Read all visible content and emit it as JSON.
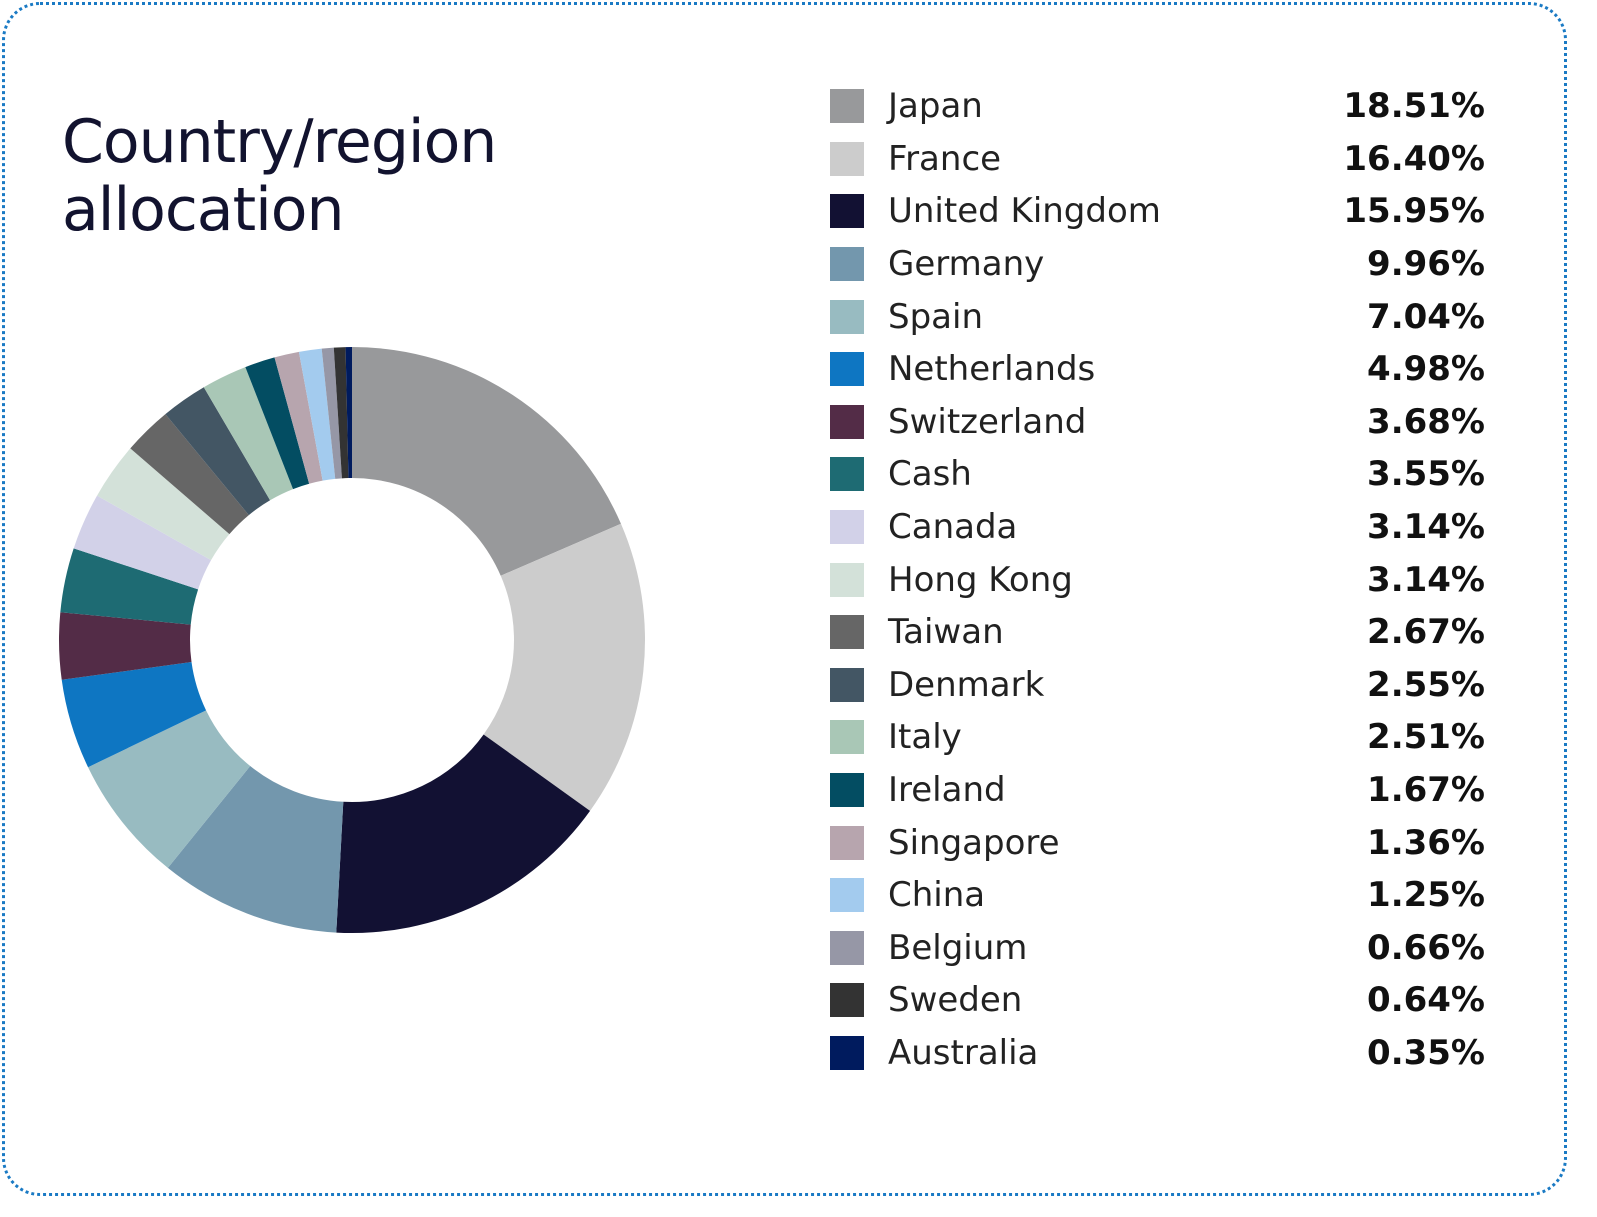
{
  "chart_data": {
    "type": "pie",
    "title": "Country/region allocation",
    "unit": "%",
    "donut": true,
    "legend": "right",
    "slices": [
      {
        "label": "Japan",
        "value": 18.51,
        "display": "18.51%",
        "color": "#98999b"
      },
      {
        "label": "France",
        "value": 16.4,
        "display": "16.40%",
        "color": "#cccccc"
      },
      {
        "label": "United Kingdom",
        "value": 15.95,
        "display": "15.95%",
        "color": "#121133"
      },
      {
        "label": "Germany",
        "value": 9.96,
        "display": "9.96%",
        "color": "#7397ad"
      },
      {
        "label": "Spain",
        "value": 7.04,
        "display": "7.04%",
        "color": "#98bbc1"
      },
      {
        "label": "Netherlands",
        "value": 4.98,
        "display": "4.98%",
        "color": "#0e76c2"
      },
      {
        "label": "Switzerland",
        "value": 3.68,
        "display": "3.68%",
        "color": "#532c47"
      },
      {
        "label": "Cash",
        "value": 3.55,
        "display": "3.55%",
        "color": "#1e6b73"
      },
      {
        "label": "Canada",
        "value": 3.14,
        "display": "3.14%",
        "color": "#d2d1e8"
      },
      {
        "label": "Hong Kong",
        "value": 3.14,
        "display": "3.14%",
        "color": "#d3e1d9"
      },
      {
        "label": "Taiwan",
        "value": 2.67,
        "display": "2.67%",
        "color": "#666666"
      },
      {
        "label": "Denmark",
        "value": 2.55,
        "display": "2.55%",
        "color": "#435664"
      },
      {
        "label": "Italy",
        "value": 2.51,
        "display": "2.51%",
        "color": "#a9c7b6"
      },
      {
        "label": "Ireland",
        "value": 1.67,
        "display": "1.67%",
        "color": "#034d62"
      },
      {
        "label": "Singapore",
        "value": 1.36,
        "display": "1.36%",
        "color": "#b7a5ae"
      },
      {
        "label": "China",
        "value": 1.25,
        "display": "1.25%",
        "color": "#a3cbee"
      },
      {
        "label": "Belgium",
        "value": 0.66,
        "display": "0.66%",
        "color": "#9697a6"
      },
      {
        "label": "Sweden",
        "value": 0.64,
        "display": "0.64%",
        "color": "#333333"
      },
      {
        "label": "Australia",
        "value": 0.35,
        "display": "0.35%",
        "color": "#001b5e"
      }
    ]
  }
}
